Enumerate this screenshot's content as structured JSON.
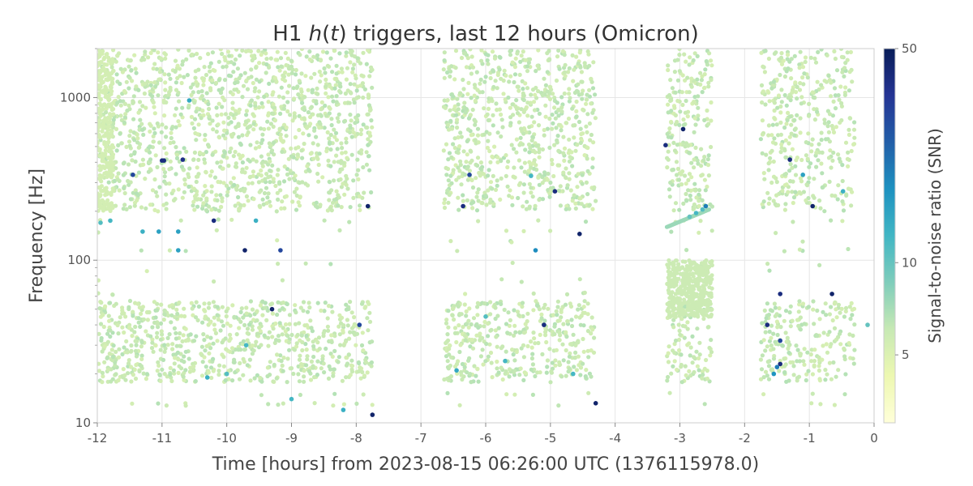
{
  "chart_data": {
    "type": "scatter",
    "title": "H1 h(t) triggers, last 12 hours (Omicron)",
    "xlabel": "Time [hours] from 2023-08-15 06:26:00 UTC (1376115978.0)",
    "ylabel": "Frequency [Hz]",
    "xlim": [
      -12,
      0
    ],
    "ylim": [
      10,
      2000
    ],
    "y_scale": "log",
    "x_ticks": [
      -12,
      -11,
      -10,
      -9,
      -8,
      -7,
      -6,
      -5,
      -4,
      -3,
      -2,
      -1,
      0
    ],
    "x_tick_labels": [
      "-12",
      "-11",
      "-10",
      "-9",
      "-8",
      "-7",
      "-6",
      "-5",
      "-4",
      "-3",
      "-2",
      "-1",
      "0"
    ],
    "y_ticks": [
      10,
      100,
      1000
    ],
    "y_tick_labels": [
      "10",
      "100",
      "1000"
    ],
    "grid": true,
    "colorbar": {
      "label": "Signal-to-noise ratio (SNR)",
      "scale": "log",
      "min": 3,
      "max": 50,
      "ticks": [
        5,
        10,
        50
      ],
      "tick_labels": [
        "5",
        "10",
        "50"
      ],
      "colormap": [
        "#ffffd9",
        "#edf8b1",
        "#c7e9b4",
        "#7fcdbb",
        "#41b6c4",
        "#1d91c0",
        "#225ea8",
        "#253494",
        "#081d58"
      ]
    },
    "background_density": [
      {
        "x_range": [
          -12,
          -7.75
        ],
        "density": 1.0,
        "background_snr": 5.8
      },
      {
        "x_range": [
          -6.65,
          -4.3
        ],
        "density": 0.95,
        "background_snr": 5.8
      },
      {
        "x_range": [
          -3.2,
          -2.5
        ],
        "density": 0.9,
        "background_snr": 5.8
      },
      {
        "x_range": [
          -1.75,
          -0.3
        ],
        "density": 0.8,
        "background_snr": 5.8
      }
    ],
    "series": [
      {
        "points": [
          [
            -11.0,
            410,
            40
          ],
          [
            -10.97,
            410,
            40
          ],
          [
            -10.68,
            415,
            38
          ],
          [
            -11.45,
            335,
            30
          ],
          [
            -10.2,
            175,
            40
          ],
          [
            -9.72,
            115,
            45
          ],
          [
            -9.17,
            115,
            30
          ],
          [
            -9.3,
            50,
            45
          ],
          [
            -7.82,
            215,
            45
          ],
          [
            -7.75,
            11.2,
            45
          ],
          [
            -7.95,
            40,
            30
          ],
          [
            -6.35,
            215,
            40
          ],
          [
            -6.25,
            335,
            30
          ],
          [
            -4.93,
            265,
            40
          ],
          [
            -5.1,
            40,
            40
          ],
          [
            -4.55,
            145,
            45
          ],
          [
            -4.3,
            13.2,
            45
          ],
          [
            -2.95,
            640,
            45
          ],
          [
            -3.22,
            510,
            40
          ],
          [
            -2.6,
            215,
            20
          ],
          [
            -1.3,
            415,
            40
          ],
          [
            -0.95,
            215,
            45
          ],
          [
            -0.65,
            62,
            45
          ],
          [
            -1.45,
            62,
            40
          ],
          [
            -1.65,
            40,
            40
          ],
          [
            -1.45,
            32,
            30
          ],
          [
            -1.45,
            23,
            40
          ],
          [
            -11.05,
            150,
            15
          ],
          [
            -10.75,
            150,
            15
          ],
          [
            -10.75,
            115,
            15
          ],
          [
            -11.3,
            150,
            13
          ],
          [
            -10.58,
            960,
            14
          ],
          [
            -9.55,
            175,
            13
          ],
          [
            -5.23,
            115,
            18
          ],
          [
            -5.3,
            330,
            12
          ],
          [
            -1.1,
            335,
            15
          ],
          [
            -0.48,
            265,
            13
          ],
          [
            -1.55,
            20,
            17
          ],
          [
            -1.5,
            22,
            20
          ],
          [
            -2.75,
            195,
            12
          ],
          [
            -2.85,
            185,
            10
          ],
          [
            -2.65,
            205,
            11
          ],
          [
            -11.8,
            175,
            12
          ],
          [
            -11.95,
            170,
            11
          ],
          [
            -9.7,
            30,
            12
          ],
          [
            -6.0,
            45,
            11
          ],
          [
            -5.7,
            24,
            12
          ],
          [
            -4.65,
            20,
            12
          ],
          [
            -10.3,
            19,
            13
          ],
          [
            -9.0,
            14,
            12
          ],
          [
            -6.45,
            21,
            14
          ],
          [
            -8.2,
            12,
            13
          ],
          [
            -10.0,
            20,
            11
          ],
          [
            -0.1,
            40,
            10
          ]
        ]
      }
    ]
  }
}
